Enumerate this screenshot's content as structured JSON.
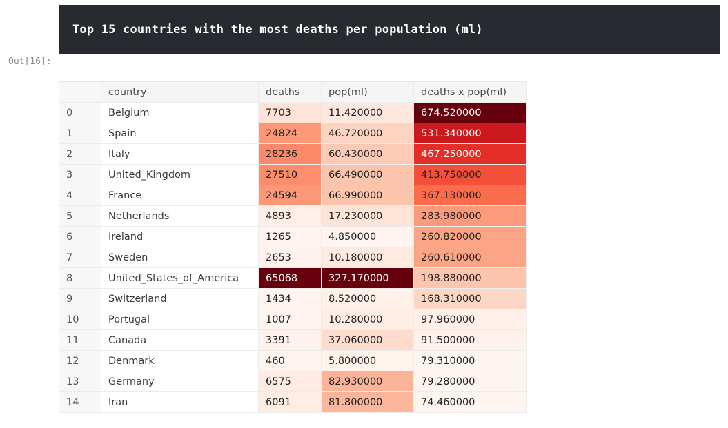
{
  "header": {
    "text": "Top 15 countries with the most deaths per population (ml)"
  },
  "prompt": "Out[16]:",
  "table": {
    "columns": [
      "",
      "country",
      "deaths",
      "pop(ml)",
      "deaths x pop(ml)"
    ],
    "rows": [
      {
        "index": "0",
        "country": "Belgium",
        "deaths": "7703",
        "pop": "11.420000",
        "dxp": "674.520000",
        "deaths_bg": "#fee3d6",
        "deaths_fg": "#222222",
        "pop_bg": "#fee7dc",
        "pop_fg": "#222222",
        "dxp_bg": "#67000d",
        "dxp_fg": "#ffffff"
      },
      {
        "index": "1",
        "country": "Spain",
        "deaths": "24824",
        "pop": "46.720000",
        "dxp": "531.340000",
        "deaths_bg": "#fc9777",
        "deaths_fg": "#222222",
        "pop_bg": "#fdd4c2",
        "pop_fg": "#222222",
        "dxp_bg": "#cc191e",
        "dxp_fg": "#ffffff"
      },
      {
        "index": "2",
        "country": "Italy",
        "deaths": "28236",
        "pop": "60.430000",
        "dxp": "467.250000",
        "deaths_bg": "#fc8a6a",
        "deaths_fg": "#222222",
        "pop_bg": "#fdcab5",
        "pop_fg": "#222222",
        "dxp_bg": "#e32f27",
        "dxp_fg": "#ffffff"
      },
      {
        "index": "3",
        "country": "United_Kingdom",
        "deaths": "27510",
        "pop": "66.490000",
        "dxp": "413.750000",
        "deaths_bg": "#fc8d6d",
        "deaths_fg": "#222222",
        "pop_bg": "#fcc4ad",
        "pop_fg": "#222222",
        "dxp_bg": "#f44f39",
        "dxp_fg": "#222222"
      },
      {
        "index": "4",
        "country": "France",
        "deaths": "24594",
        "pop": "66.990000",
        "dxp": "367.130000",
        "deaths_bg": "#fc9777",
        "deaths_fg": "#222222",
        "pop_bg": "#fcc4ad",
        "pop_fg": "#222222",
        "dxp_bg": "#fb6c4c",
        "dxp_fg": "#222222"
      },
      {
        "index": "5",
        "country": "Netherlands",
        "deaths": "4893",
        "pop": "17.230000",
        "dxp": "283.980000",
        "deaths_bg": "#ffefe8",
        "deaths_fg": "#222222",
        "pop_bg": "#fee3d7",
        "pop_fg": "#222222",
        "dxp_bg": "#fc9b7c",
        "dxp_fg": "#222222"
      },
      {
        "index": "6",
        "country": "Ireland",
        "deaths": "1265",
        "pop": "4.850000",
        "dxp": "260.820000",
        "deaths_bg": "#fff4ef",
        "deaths_fg": "#222222",
        "pop_bg": "#fff4ef",
        "pop_fg": "#222222",
        "dxp_bg": "#fca486",
        "dxp_fg": "#222222"
      },
      {
        "index": "7",
        "country": "Sweden",
        "deaths": "2653",
        "pop": "10.180000",
        "dxp": "260.610000",
        "deaths_bg": "#fff2ec",
        "deaths_fg": "#222222",
        "pop_bg": "#feeae1",
        "pop_fg": "#222222",
        "dxp_bg": "#fca486",
        "dxp_fg": "#222222"
      },
      {
        "index": "8",
        "country": "United_States_of_America",
        "deaths": "65068",
        "pop": "327.170000",
        "dxp": "198.880000",
        "deaths_bg": "#67000d",
        "deaths_fg": "#ffffff",
        "pop_bg": "#67000d",
        "pop_fg": "#ffffff",
        "dxp_bg": "#fdc5ae",
        "dxp_fg": "#222222"
      },
      {
        "index": "9",
        "country": "Switzerland",
        "deaths": "1434",
        "pop": "8.520000",
        "dxp": "168.310000",
        "deaths_bg": "#fff4ef",
        "deaths_fg": "#222222",
        "pop_bg": "#fff1ea",
        "pop_fg": "#222222",
        "dxp_bg": "#fdd7c6",
        "dxp_fg": "#222222"
      },
      {
        "index": "10",
        "country": "Portugal",
        "deaths": "1007",
        "pop": "10.280000",
        "dxp": "97.960000",
        "deaths_bg": "#fff5f0",
        "deaths_fg": "#222222",
        "pop_bg": "#feede5",
        "pop_fg": "#222222",
        "dxp_bg": "#fff0e9",
        "dxp_fg": "#222222"
      },
      {
        "index": "11",
        "country": "Canada",
        "deaths": "3391",
        "pop": "37.060000",
        "dxp": "91.500000",
        "deaths_bg": "#fff1eb",
        "deaths_fg": "#222222",
        "pop_bg": "#fedccd",
        "pop_fg": "#222222",
        "dxp_bg": "#fff2ec",
        "dxp_fg": "#222222"
      },
      {
        "index": "12",
        "country": "Denmark",
        "deaths": "460",
        "pop": "5.800000",
        "dxp": "79.310000",
        "deaths_bg": "#fff5f0",
        "deaths_fg": "#222222",
        "pop_bg": "#fff3ed",
        "pop_fg": "#222222",
        "dxp_bg": "#fff5f0",
        "dxp_fg": "#222222"
      },
      {
        "index": "13",
        "country": "Germany",
        "deaths": "6575",
        "pop": "82.930000",
        "dxp": "79.280000",
        "deaths_bg": "#feece4",
        "deaths_fg": "#222222",
        "pop_bg": "#fcb499",
        "pop_fg": "#222222",
        "dxp_bg": "#fff5f0",
        "dxp_fg": "#222222"
      },
      {
        "index": "14",
        "country": "Iran",
        "deaths": "6091",
        "pop": "81.800000",
        "dxp": "74.460000",
        "deaths_bg": "#feede5",
        "deaths_fg": "#222222",
        "pop_bg": "#fcb69b",
        "pop_fg": "#222222",
        "dxp_bg": "#fff5f0",
        "dxp_fg": "#222222"
      }
    ]
  },
  "colors": {
    "header_bg": "#272a2f",
    "colormap": "Reds"
  }
}
